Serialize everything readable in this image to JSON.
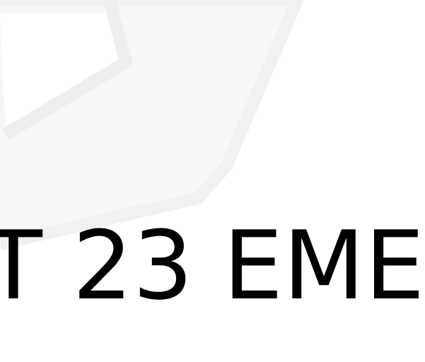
{
  "headline": {
    "text": "T 23 EME"
  },
  "colors": {
    "background": "#ffffff",
    "text": "#000000",
    "watermark": "#f4f4f4"
  },
  "icons": {
    "background_mark": "house-watermark-icon"
  }
}
